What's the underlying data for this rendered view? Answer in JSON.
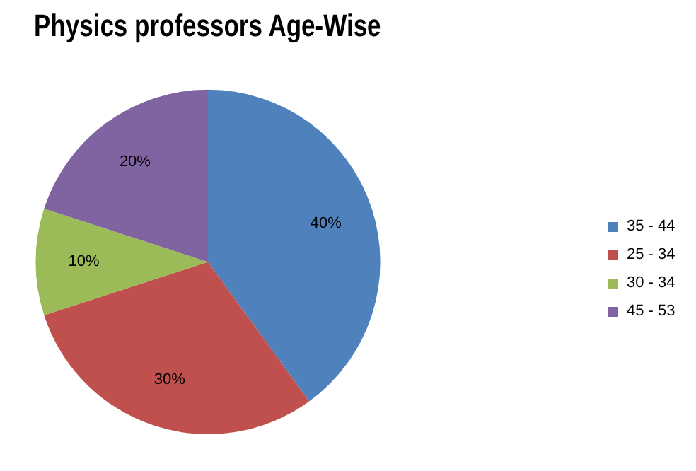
{
  "chart_data": {
    "type": "pie",
    "title": "Physics professors Age-Wise",
    "categories": [
      "35 - 44",
      "25 - 34",
      "30 - 34",
      "45 - 53"
    ],
    "values": [
      40,
      30,
      10,
      20
    ],
    "colors": [
      "#4f81bd",
      "#c0504d",
      "#9bbb59",
      "#8064a2"
    ],
    "value_labels": [
      "40%",
      "30%",
      "10%",
      "20%"
    ],
    "legend": "right"
  }
}
